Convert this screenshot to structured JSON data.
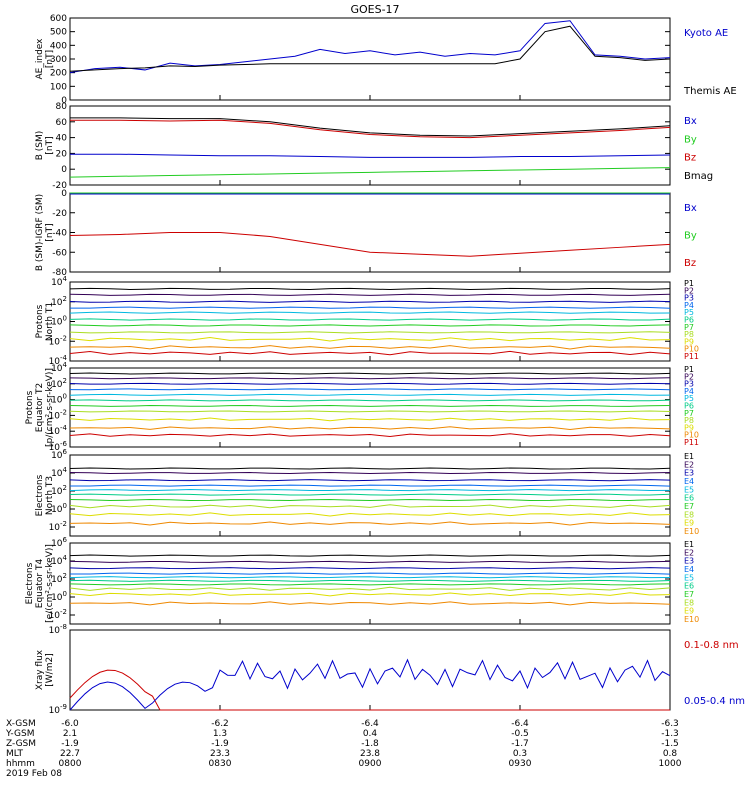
{
  "title": "GOES-17",
  "colors": {
    "black": "#000000",
    "blue": "#0000cc",
    "green": "#22cc22",
    "red": "#cc0000",
    "P1": "#000000",
    "P2": "#330055",
    "P3": "#0000aa",
    "P4": "#0066ee",
    "P5": "#00b8e0",
    "P6": "#00cc88",
    "P7": "#22cc22",
    "P8": "#aadd22",
    "P9": "#dddd00",
    "P10": "#ee8800",
    "P11": "#cc0000"
  },
  "chart_data": [
    {
      "type": "line",
      "ylabel": [
        "AE_index",
        "[nT]"
      ],
      "ylim": [
        0,
        600
      ],
      "yticks": [
        "0",
        "100",
        "200",
        "300",
        "400",
        "500",
        "600"
      ],
      "legend": [
        "Kyoto AE",
        "Themis AE"
      ],
      "x": [
        0,
        5,
        10,
        15,
        20,
        25,
        30,
        35,
        40,
        45,
        50,
        55,
        60,
        65,
        70,
        75,
        80,
        85,
        90,
        95,
        100,
        105,
        110,
        115,
        120
      ],
      "series": [
        {
          "name": "Kyoto AE",
          "color": "blue",
          "values": [
            200,
            230,
            240,
            220,
            270,
            250,
            260,
            280,
            300,
            320,
            370,
            340,
            360,
            330,
            350,
            320,
            340,
            330,
            360,
            560,
            580,
            330,
            320,
            300,
            310
          ]
        },
        {
          "name": "Themis AE",
          "color": "black",
          "values": [
            210,
            220,
            230,
            235,
            250,
            245,
            255,
            260,
            265,
            265,
            265,
            265,
            265,
            265,
            265,
            265,
            265,
            265,
            300,
            500,
            540,
            320,
            310,
            290,
            300
          ]
        }
      ]
    },
    {
      "type": "line",
      "ylabel": [
        "B (SM)",
        "[nT]"
      ],
      "ylim": [
        -20,
        80
      ],
      "yticks": [
        "-20",
        "0",
        "20",
        "40",
        "60",
        "80"
      ],
      "legend": [
        "Bx",
        "By",
        "Bz",
        "Bmag"
      ],
      "x": [
        0,
        10,
        20,
        30,
        40,
        50,
        60,
        70,
        80,
        90,
        100,
        110,
        120
      ],
      "series": [
        {
          "name": "Bx",
          "color": "blue",
          "values": [
            19,
            19,
            18,
            17,
            17,
            16,
            15,
            15,
            15,
            16,
            16,
            17,
            18
          ]
        },
        {
          "name": "By",
          "color": "green",
          "values": [
            -10,
            -9,
            -8,
            -7,
            -6,
            -5,
            -4,
            -3,
            -2,
            -1,
            0,
            1,
            2
          ]
        },
        {
          "name": "Bz",
          "color": "red",
          "values": [
            62,
            62,
            61,
            62,
            58,
            50,
            44,
            41,
            40,
            43,
            46,
            49,
            53
          ]
        },
        {
          "name": "Bmag",
          "color": "black",
          "values": [
            65,
            65,
            64,
            64,
            60,
            52,
            46,
            43,
            42,
            45,
            48,
            51,
            55
          ]
        }
      ]
    },
    {
      "type": "line",
      "ylabel": [
        "B (SM)-IGRF (SM)",
        "[nT]"
      ],
      "ylim": [
        -80,
        0
      ],
      "yticks": [
        "-80",
        "-60",
        "-40",
        "-20",
        "0"
      ],
      "legend": [
        "Bx",
        "By",
        "Bz"
      ],
      "x": [
        0,
        10,
        20,
        30,
        40,
        50,
        60,
        70,
        80,
        90,
        100,
        110,
        120
      ],
      "series": [
        {
          "name": "Bx",
          "color": "blue",
          "values": [
            -1,
            -1,
            -1,
            -1,
            -1,
            -1,
            -1,
            -1,
            -1,
            -1,
            -1,
            -1,
            -1
          ]
        },
        {
          "name": "By",
          "color": "green",
          "values": [
            0,
            0,
            0,
            0,
            0,
            0,
            0,
            0,
            0,
            0,
            0,
            0,
            0
          ]
        },
        {
          "name": "Bz",
          "color": "red",
          "values": [
            -43,
            -42,
            -40,
            -40,
            -44,
            -52,
            -60,
            -62,
            -64,
            -61,
            -58,
            -55,
            -52
          ]
        }
      ]
    },
    {
      "type": "line",
      "log": true,
      "ylabel": [
        "Protons",
        "North T1"
      ],
      "ylim": [
        -4,
        4
      ],
      "yticks": [
        "10^-4",
        "10^-2",
        "10^0",
        "10^2",
        "10^4"
      ],
      "legend": [
        "P1",
        "P2",
        "P3",
        "P4",
        "P5",
        "P6",
        "P7",
        "P8",
        "P9",
        "P10",
        "P11"
      ],
      "levels": [
        3.3,
        2.7,
        2.0,
        1.4,
        0.9,
        0.2,
        -0.4,
        -1.1,
        -1.8,
        -2.6,
        -3.2
      ]
    },
    {
      "type": "line",
      "log": true,
      "ylabel": [
        "Protons",
        "Equator T2",
        "[p/(cm²-s-sr-keV)]"
      ],
      "ylim": [
        -6,
        4
      ],
      "yticks": [
        "10^-6",
        "10^-4",
        "10^-2",
        "10^0",
        "10^2",
        "10^4"
      ],
      "legend": [
        "P1",
        "P2",
        "P3",
        "P4",
        "P5",
        "P6",
        "P7",
        "P8",
        "P9",
        "P10",
        "P11"
      ],
      "levels": [
        3.3,
        2.7,
        2.0,
        1.3,
        0.6,
        -0.1,
        -0.8,
        -1.5,
        -2.5,
        -3.6,
        -4.5
      ]
    },
    {
      "type": "line",
      "log": true,
      "ylabel": [
        "Electrons",
        "North T3"
      ],
      "ylim": [
        -3,
        6
      ],
      "yticks": [
        "10^-2",
        "10^0",
        "10^2",
        "10^4",
        "10^6"
      ],
      "legend": [
        "E1",
        "E2",
        "E3",
        "E4",
        "E5",
        "E6",
        "E7",
        "E8",
        "E9",
        "E10"
      ],
      "levels": [
        4.5,
        4.0,
        3.2,
        2.6,
        2.1,
        1.6,
        1.0,
        0.3,
        -0.6,
        -1.6
      ]
    },
    {
      "type": "line",
      "log": true,
      "ylabel": [
        "Electrons",
        "Equator T4",
        "[e/(cm²-s-sr-keV)]"
      ],
      "ylim": [
        -3,
        6
      ],
      "yticks": [
        "10^-2",
        "10^0",
        "10^2",
        "10^4",
        "10^6"
      ],
      "legend": [
        "E1",
        "E2",
        "E3",
        "E4",
        "E5",
        "E6",
        "E7",
        "E8",
        "E9",
        "E10"
      ],
      "levels": [
        4.6,
        3.9,
        3.2,
        2.6,
        2.2,
        1.8,
        1.4,
        0.9,
        0.3,
        -0.7
      ]
    },
    {
      "type": "line",
      "log": true,
      "ylabel": [
        "Xray flux",
        "[W/m2]"
      ],
      "ylim": [
        -9,
        -8
      ],
      "yticks": [
        "10^-9",
        "10^-8"
      ],
      "legend": [
        "0.1-0.8 nm",
        "0.05-0.4 nm"
      ]
    }
  ],
  "bottom_axis": {
    "row_labels": [
      "X-GSM",
      "Y-GSM",
      "Z-GSM",
      "MLT",
      "hhmm",
      "2019 Feb 08"
    ],
    "columns": [
      {
        "x-gsm": "-6.0",
        "y-gsm": "2.1",
        "z-gsm": "-1.9",
        "mlt": "22.7",
        "hhmm": "0800"
      },
      {
        "x-gsm": "-6.2",
        "y-gsm": "1.3",
        "z-gsm": "-1.9",
        "mlt": "23.3",
        "hhmm": "0830"
      },
      {
        "x-gsm": "-6.4",
        "y-gsm": "0.4",
        "z-gsm": "-1.8",
        "mlt": "23.8",
        "hhmm": "0900"
      },
      {
        "x-gsm": "-6.4",
        "y-gsm": "-0.5",
        "z-gsm": "-1.7",
        "mlt": "0.3",
        "hhmm": "0930"
      },
      {
        "x-gsm": "-6.3",
        "y-gsm": "-1.3",
        "z-gsm": "-1.5",
        "mlt": "0.8",
        "hhmm": "1000"
      }
    ]
  }
}
